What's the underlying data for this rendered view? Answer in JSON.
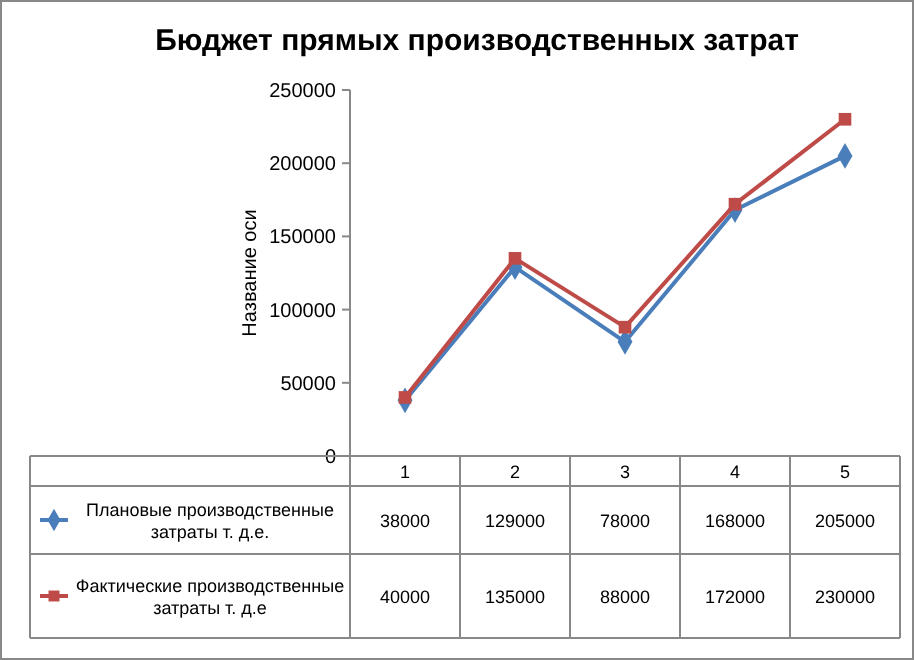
{
  "chart_data": {
    "type": "line",
    "title": "Бюджет прямых производственных затрат",
    "ylabel": "Название оси",
    "categories": [
      "1",
      "2",
      "3",
      "4",
      "5"
    ],
    "series": [
      {
        "name": "Плановые производственные затраты т. д.е.",
        "color": "#4a7ebb",
        "marker": "diamond",
        "values": [
          38000,
          129000,
          78000,
          168000,
          205000
        ]
      },
      {
        "name": "Фактические производственные затраты т. д.е",
        "color": "#be4b48",
        "marker": "square",
        "values": [
          40000,
          135000,
          88000,
          172000,
          230000
        ]
      }
    ],
    "ylim": [
      0,
      250000
    ],
    "yticks": [
      0,
      50000,
      100000,
      150000,
      200000,
      250000
    ],
    "data_labels": true,
    "grid": false,
    "legend": "bottom left"
  }
}
